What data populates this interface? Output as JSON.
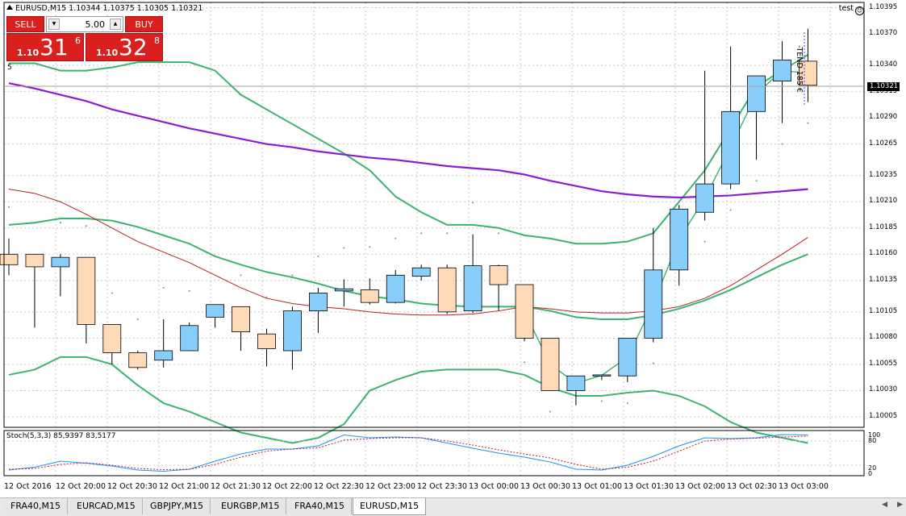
{
  "chart": {
    "symbol_header": "EURUSD,M15  1.10344 1.10375 1.10305 1.10321",
    "account_label": "test",
    "price_axis": [
      "1.10395",
      "1.10370",
      "1.10340",
      "1.10315",
      "1.10290",
      "1.10265",
      "1.10235",
      "1.10210",
      "1.10185",
      "1.10160",
      "1.10135",
      "1.10105",
      "1.10080",
      "1.10055",
      "1.10030",
      "1.10005"
    ],
    "current_price": "1.10321",
    "time_axis": [
      "12 Oct 2016",
      "12 Oct 20:00",
      "12 Oct 20:30",
      "12 Oct 21:00",
      "12 Oct 21:30",
      "12 Oct 22:00",
      "12 Oct 22:30",
      "12 Oct 23:00",
      "12 Oct 23:30",
      "13 Oct 00:00",
      "13 Oct 00:30",
      "13 Oct 01:00",
      "13 Oct 01:30",
      "13 Oct 02:00",
      "13 Oct 02:30",
      "13 Oct 03:00"
    ],
    "trade_marker": "-TEND 185 €",
    "level_marker": "5",
    "colors": {
      "bull": "#87cefa",
      "bear": "#ffdab9",
      "bollinger": "#3cb371",
      "ma_long": "#8b1ccf",
      "ma_short": "#b22222",
      "stoch_main": "#1e90ff",
      "stoch_signal": "#b22222",
      "sell_buy": "#d9201f"
    }
  },
  "chart_data": {
    "type": "candlestick",
    "title": "EURUSD,M15",
    "ylim": [
      1.09995,
      1.104
    ],
    "candles": [
      {
        "o": 1.1016,
        "h": 1.10175,
        "l": 1.1014,
        "c": 1.1015
      },
      {
        "o": 1.1016,
        "h": 1.1016,
        "l": 1.1009,
        "c": 1.10148
      },
      {
        "o": 1.10148,
        "h": 1.1016,
        "l": 1.1012,
        "c": 1.10157
      },
      {
        "o": 1.10157,
        "h": 1.10157,
        "l": 1.10075,
        "c": 1.10093
      },
      {
        "o": 1.10093,
        "h": 1.10093,
        "l": 1.10055,
        "c": 1.10066
      },
      {
        "o": 1.10066,
        "h": 1.10068,
        "l": 1.1005,
        "c": 1.10052
      },
      {
        "o": 1.10059,
        "h": 1.10098,
        "l": 1.10052,
        "c": 1.10068
      },
      {
        "o": 1.10068,
        "h": 1.10095,
        "l": 1.10068,
        "c": 1.10092
      },
      {
        "o": 1.101,
        "h": 1.1011,
        "l": 1.1009,
        "c": 1.10112
      },
      {
        "o": 1.1011,
        "h": 1.1011,
        "l": 1.10068,
        "c": 1.10086
      },
      {
        "o": 1.10084,
        "h": 1.10089,
        "l": 1.10053,
        "c": 1.1007
      },
      {
        "o": 1.10068,
        "h": 1.1011,
        "l": 1.1005,
        "c": 1.10106
      },
      {
        "o": 1.10106,
        "h": 1.10128,
        "l": 1.10085,
        "c": 1.10123
      },
      {
        "o": 1.10125,
        "h": 1.10136,
        "l": 1.1011,
        "c": 1.10127
      },
      {
        "o": 1.10126,
        "h": 1.10137,
        "l": 1.10112,
        "c": 1.10114
      },
      {
        "o": 1.10114,
        "h": 1.10145,
        "l": 1.10113,
        "c": 1.1014
      },
      {
        "o": 1.10139,
        "h": 1.1015,
        "l": 1.10135,
        "c": 1.10147
      },
      {
        "o": 1.10147,
        "h": 1.1015,
        "l": 1.10103,
        "c": 1.10105
      },
      {
        "o": 1.10106,
        "h": 1.10179,
        "l": 1.10104,
        "c": 1.10149
      },
      {
        "o": 1.10149,
        "h": 1.1015,
        "l": 1.10106,
        "c": 1.10131
      },
      {
        "o": 1.10131,
        "h": 1.10131,
        "l": 1.10077,
        "c": 1.1008
      },
      {
        "o": 1.1008,
        "h": 1.1008,
        "l": 1.1003,
        "c": 1.1003
      },
      {
        "o": 1.1003,
        "h": 1.10043,
        "l": 1.10016,
        "c": 1.10044
      },
      {
        "o": 1.10044,
        "h": 1.10045,
        "l": 1.1004,
        "c": 1.10045
      },
      {
        "o": 1.10044,
        "h": 1.1008,
        "l": 1.10038,
        "c": 1.1008
      },
      {
        "o": 1.1008,
        "h": 1.10185,
        "l": 1.10076,
        "c": 1.10145
      },
      {
        "o": 1.10145,
        "h": 1.10207,
        "l": 1.1013,
        "c": 1.10203
      },
      {
        "o": 1.102,
        "h": 1.10335,
        "l": 1.10192,
        "c": 1.10227
      },
      {
        "o": 1.10227,
        "h": 1.10358,
        "l": 1.10222,
        "c": 1.10296
      },
      {
        "o": 1.10296,
        "h": 1.1033,
        "l": 1.1025,
        "c": 1.1033
      },
      {
        "o": 1.10325,
        "h": 1.10363,
        "l": 1.10285,
        "c": 1.10345
      },
      {
        "o": 1.10344,
        "h": 1.10375,
        "l": 1.10305,
        "c": 1.10321
      }
    ],
    "stochastic": {
      "label": "Stoch(5,3,3) 85,9397 83,5177",
      "ylim": [
        0,
        100
      ],
      "levels": [
        20,
        80
      ]
    }
  },
  "one_click": {
    "sell_label": "SELL",
    "buy_label": "BUY",
    "lot": "5.00",
    "sell_pre": "1.10",
    "sell_big": "31",
    "sell_sup": "6",
    "buy_pre": "1.10",
    "buy_big": "32",
    "buy_sup": "8"
  },
  "stoch_labels": {
    "top": "100",
    "high": "80",
    "low": "20",
    "bottom": "0"
  },
  "tabs": [
    {
      "label": "FRA40,M15"
    },
    {
      "label": "EURCAD,M15"
    },
    {
      "label": "GBPJPY,M15"
    },
    {
      "label": "EURGBP,M15"
    },
    {
      "label": "FRA40,M15"
    },
    {
      "label": "EURUSD,M15"
    }
  ]
}
